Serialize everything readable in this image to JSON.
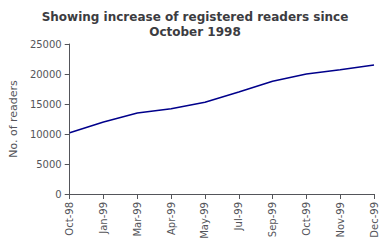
{
  "chart_data": {
    "type": "line",
    "title": "Showing increase of registered readers since\nOctober 1998",
    "ylabel": "No. of readers",
    "categories": [
      "Oct-98",
      "Jan-99",
      "Mar-99",
      "Apr-99",
      "May-99",
      "Jul-99",
      "Sep-99",
      "Oct-99",
      "Nov-99",
      "Dec-99"
    ],
    "values": [
      10200,
      12000,
      13500,
      14200,
      15300,
      17000,
      18800,
      20000,
      20700,
      21500
    ],
    "color": "#00008b",
    "ylim": [
      0,
      25000
    ],
    "yticks": [
      0,
      5000,
      10000,
      15000,
      20000,
      25000
    ],
    "grid": false
  }
}
